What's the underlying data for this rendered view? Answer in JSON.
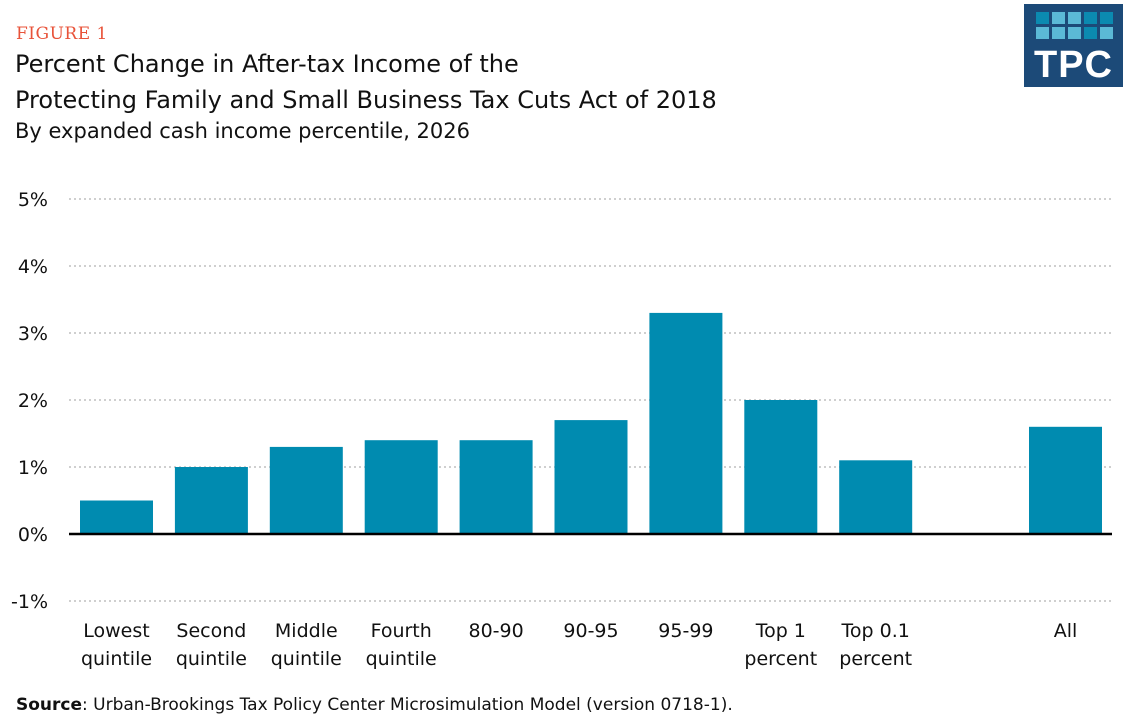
{
  "figure_label": "FIGURE 1",
  "logo_text": "TPC",
  "colors": {
    "bar": "#008bb0",
    "figure_label": "#e8533a",
    "logo_bg": "#1c4a78",
    "logo_squares": [
      "#0b8ab0",
      "#5bb9d6"
    ]
  },
  "source": {
    "label": "Source",
    "text": ": Urban-Brookings Tax Policy Center Microsimulation Model (version 0718-1)."
  },
  "chart_data": {
    "type": "bar",
    "title": "Percent Change in After-tax Income of the Protecting Family and Small Business Tax Cuts Act of 2018",
    "title_lines": [
      "Percent Change in After-tax Income of the",
      "Protecting Family and Small Business Tax Cuts Act of 2018"
    ],
    "subtitle": "By expanded cash income percentile, 2026",
    "categories": [
      [
        "Lowest",
        "quintile"
      ],
      [
        "Second",
        "quintile"
      ],
      [
        "Middle",
        "quintile"
      ],
      [
        "Fourth",
        "quintile"
      ],
      [
        "80-90"
      ],
      [
        "90-95"
      ],
      [
        "95-99"
      ],
      [
        "Top 1",
        "percent"
      ],
      [
        "Top 0.1",
        "percent"
      ],
      [
        ""
      ],
      [
        "All"
      ]
    ],
    "values": [
      0.5,
      1.0,
      1.3,
      1.4,
      1.4,
      1.7,
      3.3,
      2.0,
      1.1,
      null,
      1.6
    ],
    "ylim": [
      -1,
      5
    ],
    "yticks": [
      -1,
      0,
      1,
      2,
      3,
      4,
      5
    ],
    "ytick_labels": [
      "-1%",
      "0%",
      "1%",
      "2%",
      "3%",
      "4%",
      "5%"
    ],
    "grid": "dotted horizontal",
    "xlabel": "",
    "ylabel": ""
  }
}
